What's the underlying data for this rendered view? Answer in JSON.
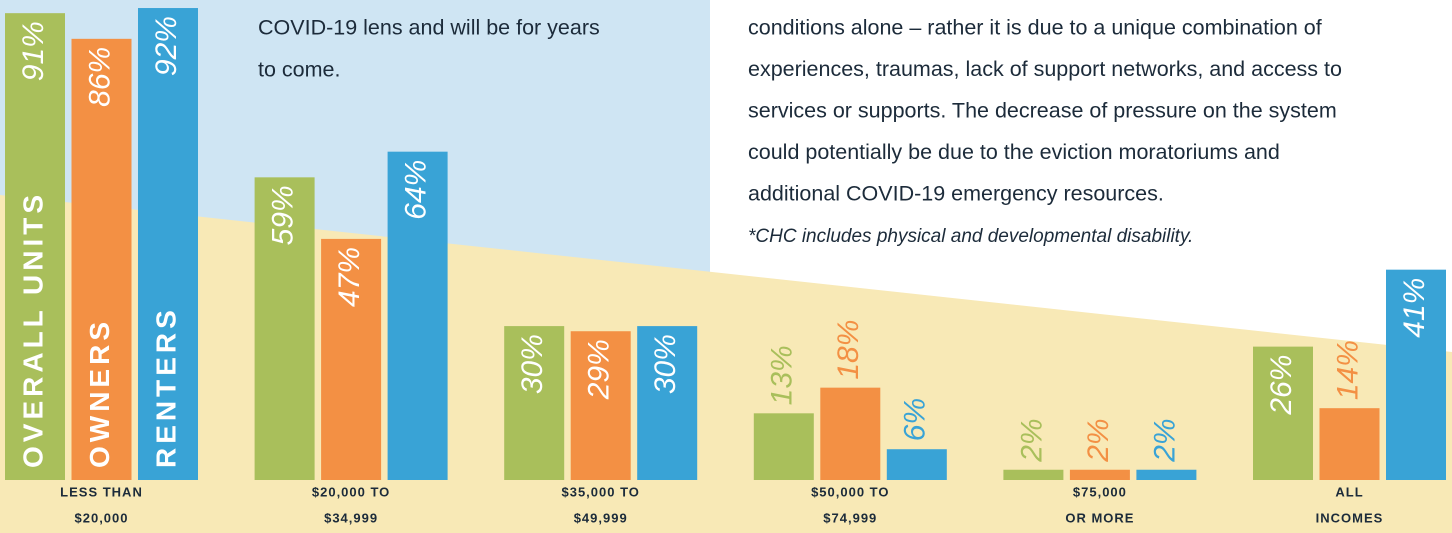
{
  "chart_data": {
    "type": "bar",
    "text_left": [
      "COVID-19 lens and will be for years",
      "to come."
    ],
    "text_right": [
      "conditions alone – rather it is due to a unique combination of",
      "experiences, traumas, lack of support networks, and access to",
      "services or supports. The decrease of pressure on the system",
      "could potentially be due to the eviction moratoriums and",
      "additional COVID-19 emergency resources."
    ],
    "note": "*CHC includes physical and developmental disability.",
    "categories": [
      [
        "LESS THAN",
        "$20,000"
      ],
      [
        "$20,000 TO",
        "$34,999"
      ],
      [
        "$35,000 TO",
        "$49,999"
      ],
      [
        "$50,000 TO",
        "$74,999"
      ],
      [
        "$75,000",
        "OR MORE"
      ],
      [
        "ALL",
        "INCOMES"
      ]
    ],
    "series": [
      {
        "name": "OVERALL UNITS",
        "color": "#a9bf5b",
        "values": [
          91,
          59,
          30,
          13,
          2,
          26
        ],
        "value_labels": [
          "91%",
          "59%",
          "30%",
          "13%",
          "2%",
          "26%"
        ]
      },
      {
        "name": "OWNERS",
        "color": "#f39044",
        "values": [
          86,
          47,
          29,
          18,
          2,
          14
        ],
        "value_labels": [
          "86%",
          "47%",
          "29%",
          "18%",
          "2%",
          "14%"
        ]
      },
      {
        "name": "RENTERS",
        "color": "#39a3d6",
        "values": [
          92,
          64,
          30,
          6,
          2,
          41
        ],
        "value_labels": [
          "92%",
          "64%",
          "30%",
          "6%",
          "2%",
          "41%"
        ]
      }
    ]
  }
}
